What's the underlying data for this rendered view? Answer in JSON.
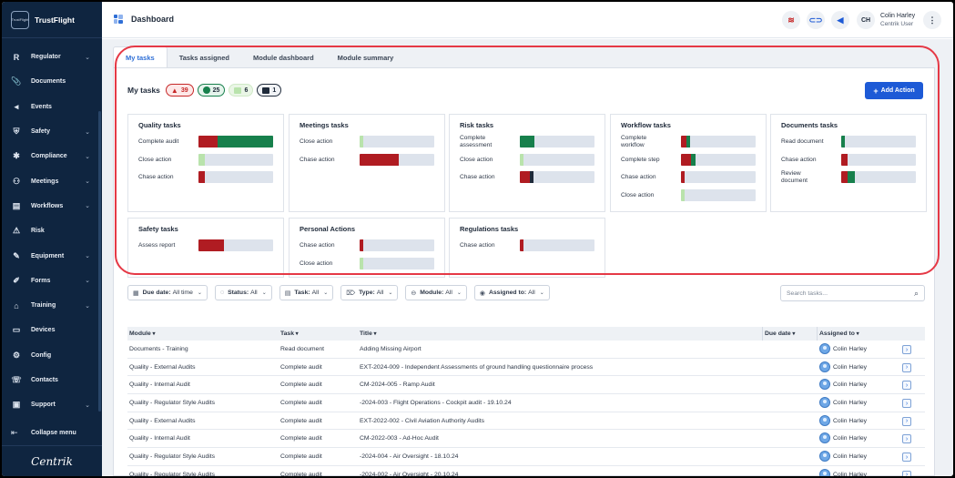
{
  "brand": {
    "name": "TrustFlight",
    "logo_text": "TrustFlight"
  },
  "sidebar": {
    "items": [
      {
        "label": "Regulator",
        "icon": "R",
        "name": "regulator",
        "chevron": true
      },
      {
        "label": "Documents",
        "icon": "📎",
        "name": "documents",
        "chevron": false
      },
      {
        "label": "Events",
        "icon": "◂",
        "name": "events",
        "chevron": false
      },
      {
        "label": "Safety",
        "icon": "⛨",
        "name": "safety",
        "chevron": true
      },
      {
        "label": "Compliance",
        "icon": "✱",
        "name": "compliance",
        "chevron": true
      },
      {
        "label": "Meetings",
        "icon": "⚇",
        "name": "meetings",
        "chevron": true
      },
      {
        "label": "Workflows",
        "icon": "▤",
        "name": "workflows",
        "chevron": true
      },
      {
        "label": "Risk",
        "icon": "⚠",
        "name": "risk",
        "chevron": false
      },
      {
        "label": "Equipment",
        "icon": "✎",
        "name": "equipment",
        "chevron": true
      },
      {
        "label": "Forms",
        "icon": "✐",
        "name": "forms",
        "chevron": true
      },
      {
        "label": "Training",
        "icon": "⌂",
        "name": "training",
        "chevron": true
      },
      {
        "label": "Devices",
        "icon": "▭",
        "name": "devices",
        "chevron": false
      },
      {
        "label": "Config",
        "icon": "⚙",
        "name": "config",
        "chevron": false
      },
      {
        "label": "Contacts",
        "icon": "☏",
        "name": "contacts",
        "chevron": false
      },
      {
        "label": "Support",
        "icon": "▣",
        "name": "support",
        "chevron": true
      }
    ],
    "collapse_label": "Collapse menu",
    "footer_logo": "Centrik"
  },
  "header": {
    "title": "Dashboard",
    "user_initials": "CH",
    "user_name": "Colin Harley",
    "user_role": "Centrik User"
  },
  "tabs": [
    {
      "label": "My tasks",
      "active": true
    },
    {
      "label": "Tasks assigned",
      "active": false
    },
    {
      "label": "Module dashboard",
      "active": false
    },
    {
      "label": "Module summary",
      "active": false
    }
  ],
  "my_tasks": {
    "title": "My tasks",
    "counts": {
      "overdue": "39",
      "on_track": "25",
      "upcoming": "6",
      "other": "1"
    },
    "add_action_label": "Add Action"
  },
  "colors": {
    "overdue": "#b01c22",
    "on_track": "#17804c",
    "upcoming": "#b9e3ac",
    "other": "#1f2a3a",
    "accent": "#1d5ad6",
    "track": "#dde3ec"
  },
  "task_cards": [
    {
      "title": "Quality tasks",
      "rows": [
        {
          "label": "Complete audit",
          "segs": [
            [
              "#b01c22",
              0.25
            ],
            [
              "#17804c",
              0.75
            ]
          ]
        },
        {
          "label": "Close action",
          "segs": [
            [
              "#b9e3ac",
              0.09
            ]
          ]
        },
        {
          "label": "Chase action",
          "segs": [
            [
              "#b01c22",
              0.09
            ]
          ]
        }
      ]
    },
    {
      "title": "Meetings tasks",
      "rows": [
        {
          "label": "Close action",
          "segs": [
            [
              "#b9e3ac",
              0.05
            ]
          ]
        },
        {
          "label": "Chase action",
          "segs": [
            [
              "#b01c22",
              0.53
            ]
          ]
        }
      ]
    },
    {
      "title": "Risk tasks",
      "rows": [
        {
          "label": "Complete assessment",
          "segs": [
            [
              "#17804c",
              0.19
            ]
          ]
        },
        {
          "label": "Close action",
          "segs": [
            [
              "#b9e3ac",
              0.05
            ]
          ]
        },
        {
          "label": "Chase action",
          "segs": [
            [
              "#b01c22",
              0.14
            ],
            [
              "#1f2a3a",
              0.04
            ]
          ]
        }
      ]
    },
    {
      "title": "Workflow tasks",
      "rows": [
        {
          "label": "Complete workflow",
          "segs": [
            [
              "#b01c22",
              0.07
            ],
            [
              "#17804c",
              0.05
            ]
          ]
        },
        {
          "label": "Complete step",
          "segs": [
            [
              "#b01c22",
              0.14
            ],
            [
              "#17804c",
              0.05
            ]
          ]
        },
        {
          "label": "Chase action",
          "segs": [
            [
              "#b01c22",
              0.05
            ]
          ]
        },
        {
          "label": "Close action",
          "segs": [
            [
              "#b9e3ac",
              0.05
            ]
          ]
        }
      ]
    },
    {
      "title": "Documents tasks",
      "rows": [
        {
          "label": "Read document",
          "segs": [
            [
              "#17804c",
              0.05
            ]
          ]
        },
        {
          "label": "Chase action",
          "segs": [
            [
              "#b01c22",
              0.09
            ]
          ]
        },
        {
          "label": "Review document",
          "segs": [
            [
              "#b01c22",
              0.09
            ],
            [
              "#17804c",
              0.09
            ]
          ]
        }
      ]
    },
    {
      "title": "Safety tasks",
      "rows": [
        {
          "label": "Assess report",
          "segs": [
            [
              "#b01c22",
              0.34
            ]
          ]
        }
      ]
    },
    {
      "title": "Personal Actions",
      "rows": [
        {
          "label": "Chase action",
          "segs": [
            [
              "#b01c22",
              0.05
            ]
          ]
        },
        {
          "label": "Close action",
          "segs": [
            [
              "#b9e3ac",
              0.05
            ]
          ]
        }
      ]
    },
    {
      "title": "Regulations tasks",
      "rows": [
        {
          "label": "Chase action",
          "segs": [
            [
              "#b01c22",
              0.05
            ]
          ]
        }
      ]
    }
  ],
  "filters": [
    {
      "key": "Due date:",
      "value": "All time",
      "icon": "▦"
    },
    {
      "key": "Status:",
      "value": "All",
      "icon": "◌"
    },
    {
      "key": "Task:",
      "value": "All",
      "icon": "▤"
    },
    {
      "key": "Type:",
      "value": "All",
      "icon": "⌦"
    },
    {
      "key": "Module:",
      "value": "All",
      "icon": "⊖"
    },
    {
      "key": "Assigned to:",
      "value": "All",
      "icon": "◉"
    }
  ],
  "search": {
    "placeholder": "Search tasks..."
  },
  "table": {
    "headers": [
      "Module",
      "Task",
      "Title",
      "Due date",
      "Assigned to"
    ],
    "rows": [
      [
        "Documents - Training",
        "Read document",
        "Adding Missing Airport",
        "",
        "Colin Harley"
      ],
      [
        "Quality - External Audits",
        "Complete audit",
        "EXT-2024-009 - Independent Assessments of ground handling questionnaire process",
        "",
        "Colin Harley"
      ],
      [
        "Quality - Internal Audit",
        "Complete audit",
        "CM-2024-005 - Ramp Audit",
        "",
        "Colin Harley"
      ],
      [
        "Quality - Regulator Style Audits",
        "Complete audit",
        "-2024-003 - Flight Operations - Cockpit audit - 19.10.24",
        "",
        "Colin Harley"
      ],
      [
        "Quality - External Audits",
        "Complete audit",
        "EXT-2022-002 - Civil Aviation Authority Audits",
        "",
        "Colin Harley"
      ],
      [
        "Quality - Internal Audit",
        "Complete audit",
        "CM-2022-003 - Ad-Hoc Audit",
        "",
        "Colin Harley"
      ],
      [
        "Quality - Regulator Style Audits",
        "Complete audit",
        "-2024-004 - Air Oversight - 18.10.24",
        "",
        "Colin Harley"
      ],
      [
        "Quality - Regulator Style Audits",
        "Complete audit",
        "-2024-002 - Air Oversight - 20.10.24",
        "",
        "Colin Harley"
      ]
    ]
  }
}
